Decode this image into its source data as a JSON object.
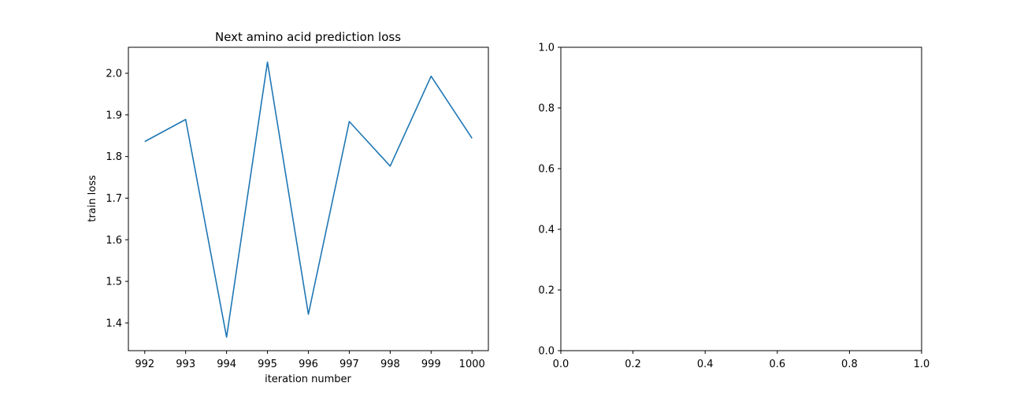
{
  "chart_data": [
    {
      "type": "line",
      "title": "Next amino acid prediction loss",
      "xlabel": "iteration number",
      "ylabel": "train loss",
      "xlim": [
        991.6,
        1000.4
      ],
      "ylim": [
        1.3335,
        2.0625
      ],
      "xticks": [
        992,
        993,
        994,
        995,
        996,
        997,
        998,
        999,
        1000
      ],
      "yticks": [
        1.4,
        1.5,
        1.6,
        1.7,
        1.8,
        1.9,
        2.0
      ],
      "xtick_labels": [
        "992",
        "993",
        "994",
        "995",
        "996",
        "997",
        "998",
        "999",
        "1000"
      ],
      "ytick_labels": [
        "1.4",
        "1.5",
        "1.6",
        "1.7",
        "1.8",
        "1.9",
        "2.0"
      ],
      "grid": false,
      "series": [
        {
          "color": "#1f77b4",
          "x": [
            992,
            993,
            994,
            995,
            996,
            997,
            998,
            999,
            1000
          ],
          "y": [
            1.836,
            1.889,
            1.366,
            2.027,
            1.421,
            1.884,
            1.777,
            1.993,
            1.844
          ]
        }
      ]
    },
    {
      "type": "line",
      "title": "",
      "xlabel": "",
      "ylabel": "",
      "xlim": [
        0.0,
        1.0
      ],
      "ylim": [
        0.0,
        1.0
      ],
      "xticks": [
        0.0,
        0.2,
        0.4,
        0.6,
        0.8,
        1.0
      ],
      "yticks": [
        0.0,
        0.2,
        0.4,
        0.6,
        0.8,
        1.0
      ],
      "xtick_labels": [
        "0.0",
        "0.2",
        "0.4",
        "0.6",
        "0.8",
        "1.0"
      ],
      "ytick_labels": [
        "0.0",
        "0.2",
        "0.4",
        "0.6",
        "0.8",
        "1.0"
      ],
      "grid": false,
      "series": []
    }
  ]
}
